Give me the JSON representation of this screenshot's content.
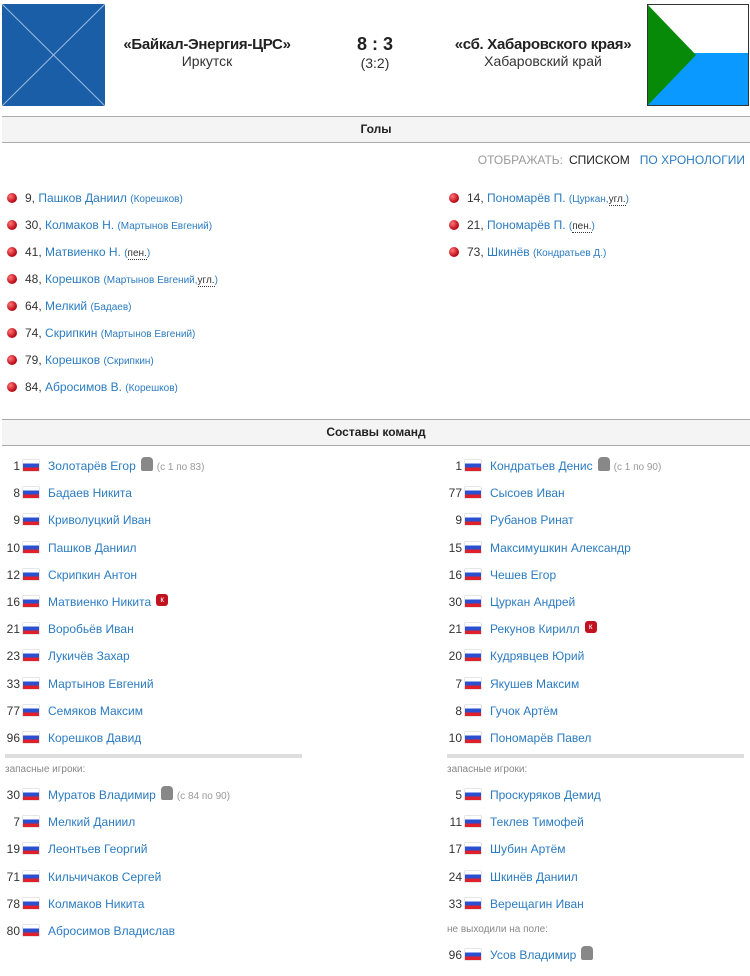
{
  "match": {
    "home": {
      "name": "«Байкал-Энергия-ЦРС»",
      "city": "Иркутск"
    },
    "away": {
      "name": "«сб. Хабаровского края»",
      "city": "Хабаровский край"
    },
    "score": "8 : 3",
    "half": "(3:2)"
  },
  "goals_section": {
    "title": "Голы",
    "display_label": "ОТОБРАЖАТЬ:",
    "mode_list": "СПИСКОМ",
    "mode_chrono": "ПО ХРОНОЛОГИИ"
  },
  "goals": {
    "home": [
      {
        "min": "9,",
        "player": "Пашков Даниил",
        "note": "(Корешков)"
      },
      {
        "min": "30,",
        "player": "Колмаков Н.",
        "note": "(Мартынов Евгений)"
      },
      {
        "min": "41,",
        "player": "Матвиенко Н.",
        "pre": "(",
        "abbr": "пен.",
        "post": ")"
      },
      {
        "min": "48,",
        "player": "Корешков",
        "note": "(Мартынов Евгений,",
        "abbr": "угл.",
        "post": ")"
      },
      {
        "min": "64,",
        "player": "Мелкий",
        "note": "(Бадаев)"
      },
      {
        "min": "74,",
        "player": "Скрипкин",
        "note": "(Мартынов Евгений)"
      },
      {
        "min": "79,",
        "player": "Корешков",
        "note": "(Скрипкин)"
      },
      {
        "min": "84,",
        "player": "Абросимов В.",
        "note": "(Корешков)"
      }
    ],
    "away": [
      {
        "min": "14,",
        "player": "Пономарёв П.",
        "note": "(Цуркан,",
        "abbr": "угл.",
        "post": ")"
      },
      {
        "min": "21,",
        "player": "Пономарёв П.",
        "pre": "(",
        "abbr": "пен.",
        "post": ")"
      },
      {
        "min": "73,",
        "player": "Шкинёв",
        "note": "(Кондратьев Д.)"
      }
    ]
  },
  "lineups_section": {
    "title": "Составы команд",
    "subs_label": "запасные игроки:",
    "unused_label": "не выходили на поле:"
  },
  "lineups": {
    "home": {
      "starters": [
        {
          "num": "1",
          "name": "Золотарёв Егор",
          "gk": true,
          "time": "(с 1 по 83)"
        },
        {
          "num": "8",
          "name": "Бадаев Никита"
        },
        {
          "num": "9",
          "name": "Криволуцкий Иван"
        },
        {
          "num": "10",
          "name": "Пашков Даниил"
        },
        {
          "num": "12",
          "name": "Скрипкин Антон"
        },
        {
          "num": "16",
          "name": "Матвиенко Никита",
          "card": "к"
        },
        {
          "num": "21",
          "name": "Воробьёв Иван"
        },
        {
          "num": "23",
          "name": "Лукичёв Захар"
        },
        {
          "num": "33",
          "name": "Мартынов Евгений"
        },
        {
          "num": "77",
          "name": "Семяков Максим"
        },
        {
          "num": "96",
          "name": "Корешков Давид"
        }
      ],
      "subs": [
        {
          "num": "30",
          "name": "Муратов Владимир",
          "gk": true,
          "time": "(с 84 по 90)"
        },
        {
          "num": "7",
          "name": "Мелкий Даниил"
        },
        {
          "num": "19",
          "name": "Леонтьев Георгий"
        },
        {
          "num": "71",
          "name": "Кильчичаков Сергей"
        },
        {
          "num": "78",
          "name": "Колмаков Никита"
        },
        {
          "num": "80",
          "name": "Абросимов Владислав"
        }
      ]
    },
    "away": {
      "starters": [
        {
          "num": "1",
          "name": "Кондратьев Денис",
          "gk": true,
          "time": "(с 1 по 90)"
        },
        {
          "num": "77",
          "name": "Сысоев Иван"
        },
        {
          "num": "9",
          "name": "Рубанов Ринат"
        },
        {
          "num": "15",
          "name": "Максимушкин Александр"
        },
        {
          "num": "16",
          "name": "Чешев Егор"
        },
        {
          "num": "30",
          "name": "Цуркан Андрей"
        },
        {
          "num": "21",
          "name": "Рекунов Кирилл",
          "card": "к"
        },
        {
          "num": "20",
          "name": "Кудрявцев Юрий"
        },
        {
          "num": "7",
          "name": "Якушев Максим"
        },
        {
          "num": "8",
          "name": "Гучок Артём"
        },
        {
          "num": "10",
          "name": "Пономарёв Павел"
        }
      ],
      "subs": [
        {
          "num": "5",
          "name": "Проскуряков Демид"
        },
        {
          "num": "11",
          "name": "Теклев Тимофей"
        },
        {
          "num": "17",
          "name": "Шубин Артём"
        },
        {
          "num": "24",
          "name": "Шкинёв Даниил"
        },
        {
          "num": "33",
          "name": "Верещагин Иван"
        }
      ],
      "unused": [
        {
          "num": "96",
          "name": "Усов Владимир",
          "gk": true
        }
      ]
    }
  },
  "colors": {
    "link": "#2b7bc0",
    "ball": "#c1121f",
    "home_logo": "#1a5ea8",
    "away_green": "#078a08",
    "away_blue": "#0a9aff"
  }
}
